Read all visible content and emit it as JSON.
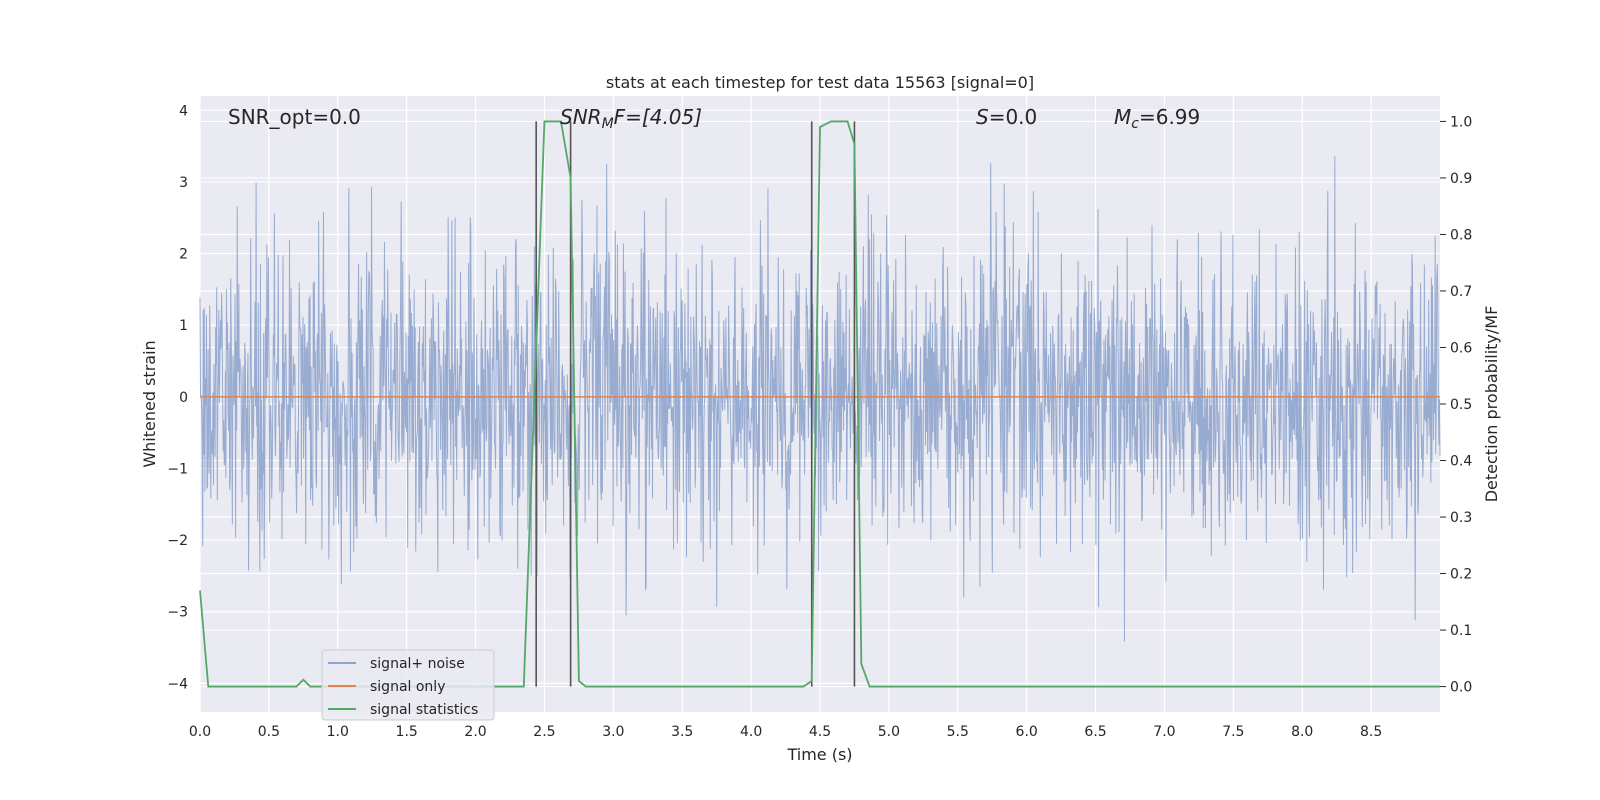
{
  "chart_data": {
    "type": "line",
    "title": "stats at each timestep for test data 15563 [signal=0]",
    "xlabel": "Time (s)",
    "ylabel": "Whitened strain",
    "ylabel_right": "Detection probability/MF",
    "xlim": [
      0.0,
      9.0
    ],
    "ylim": [
      -4.4,
      4.2
    ],
    "ylim_right": [
      -0.045,
      1.045
    ],
    "x_ticks": [
      "0.0",
      "0.5",
      "1.0",
      "1.5",
      "2.0",
      "2.5",
      "3.0",
      "3.5",
      "4.0",
      "4.5",
      "5.0",
      "5.5",
      "6.0",
      "6.5",
      "7.0",
      "7.5",
      "8.0",
      "8.5"
    ],
    "y_ticks": [
      "4",
      "3",
      "2",
      "1",
      "0",
      "−1",
      "−2",
      "−3",
      "−4"
    ],
    "y_right_ticks": [
      "1.0",
      "0.9",
      "0.8",
      "0.7",
      "0.6",
      "0.5",
      "0.4",
      "0.3",
      "0.2",
      "0.1",
      "0.0"
    ],
    "grid": true,
    "legend_position": "lower-left",
    "annotations": {
      "snr_opt": "SNR_opt=0.0",
      "snr_mf_name": "SNR",
      "snr_mf_sub": "M",
      "snr_mf_rest": "F=[4.05]",
      "s_name": "S",
      "s_rest": "=0.0",
      "mc_name": "M",
      "mc_sub": "c",
      "mc_rest": "=6.99"
    },
    "vertical_lines": [
      2.44,
      2.69,
      4.44,
      4.75
    ],
    "series": [
      {
        "name": "signal+ noise",
        "axis": "left",
        "color": "#8fa4cc",
        "description_values_range": [
          -4.0,
          3.4
        ],
        "seed": 15563,
        "n_samples": 2300
      },
      {
        "name": "signal only",
        "axis": "left",
        "color": "#dd8452",
        "x": [
          0.0,
          9.0
        ],
        "y": [
          0.0,
          0.0
        ]
      },
      {
        "name": "signal statistics",
        "axis": "right",
        "color": "#55a868",
        "x": [
          0.0,
          0.06,
          0.12,
          0.7,
          0.75,
          0.8,
          2.35,
          2.44,
          2.5,
          2.62,
          2.69,
          2.75,
          2.8,
          4.38,
          4.44,
          4.5,
          4.58,
          4.7,
          4.75,
          4.8,
          4.86,
          9.0
        ],
        "y": [
          0.17,
          0.0,
          0.0,
          0.0,
          0.012,
          0.0,
          0.0,
          0.6,
          1.0,
          1.0,
          0.9,
          0.01,
          0.0,
          0.0,
          0.01,
          0.99,
          1.0,
          1.0,
          0.96,
          0.04,
          0.0,
          0.0
        ]
      }
    ]
  }
}
